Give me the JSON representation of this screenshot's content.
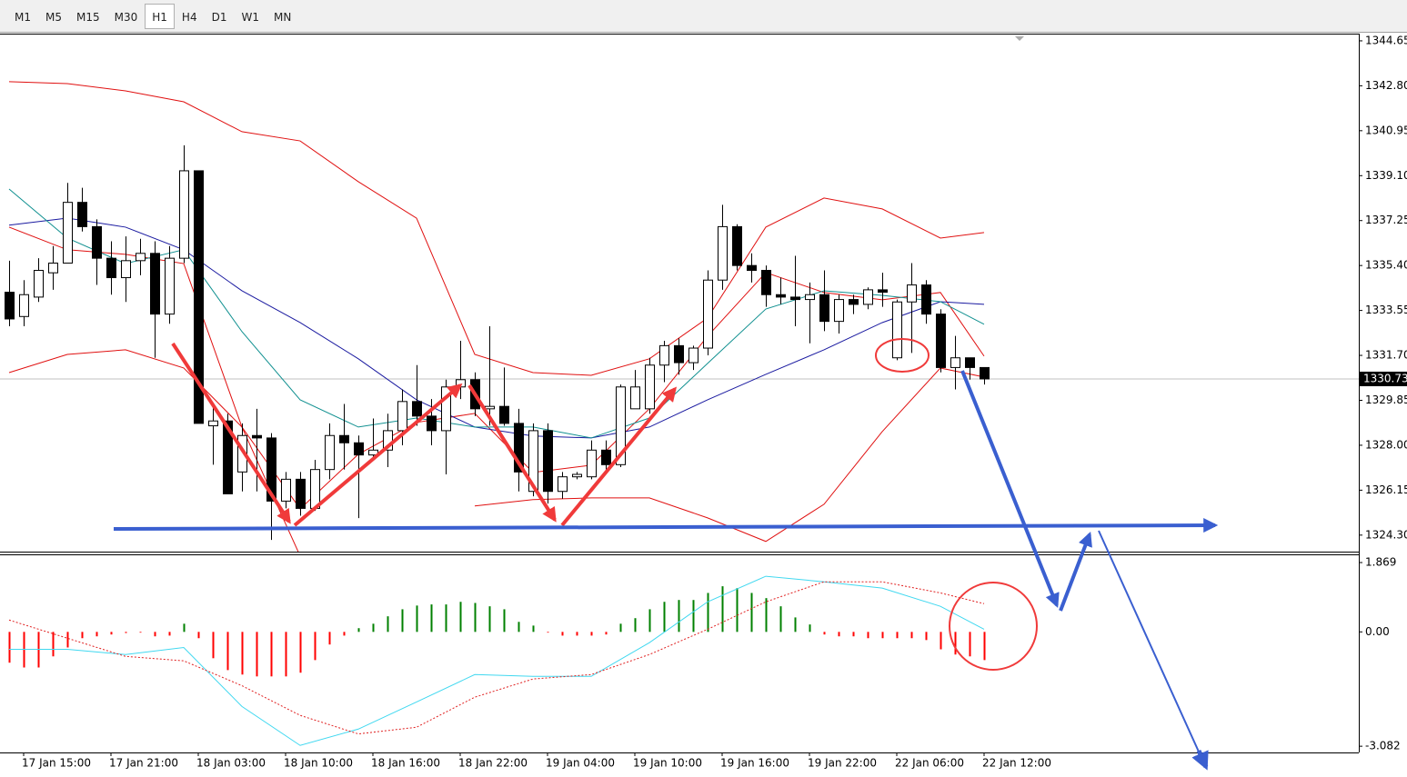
{
  "toolbar": {
    "timeframes": [
      "M1",
      "M5",
      "M15",
      "M30",
      "H1",
      "H4",
      "D1",
      "W1",
      "MN"
    ],
    "active": "H1"
  },
  "chart_data": [
    {
      "type": "candlestick",
      "open": [
        1334.3,
        1333.3,
        1334.1,
        1335.1,
        1335.5,
        1338.0,
        1337.0,
        1335.7,
        1334.9,
        1335.6,
        1335.9,
        1333.4,
        1335.7,
        1339.3,
        1328.8,
        1329.0,
        1326.9,
        1328.4,
        1328.3,
        1325.7,
        1326.6,
        1325.4,
        1327.0,
        1328.4,
        1328.1,
        1327.6,
        1327.8,
        1328.6,
        1329.8,
        1329.2,
        1328.6,
        1330.4,
        1330.7,
        1329.5,
        1329.6,
        1328.9,
        1326.1,
        1328.6,
        1326.1,
        1326.7,
        1326.7,
        1327.8,
        1327.2,
        1329.5,
        1329.5,
        1331.3,
        1332.1,
        1331.4,
        1332.0,
        1334.8,
        1337.0,
        1335.4,
        1335.2,
        1334.2,
        1334.1,
        1334.0,
        1334.2,
        1333.1,
        1334.0,
        1333.8,
        1334.4,
        1331.6,
        1333.9,
        1334.6,
        1333.4,
        1331.2,
        1331.6,
        1331.2
      ],
      "high": [
        1335.6,
        1334.8,
        1335.7,
        1336.2,
        1338.8,
        1338.6,
        1337.3,
        1336.4,
        1336.6,
        1336.5,
        1336.4,
        1336.2,
        1340.35,
        1339.3,
        1329.6,
        1329.3,
        1328.9,
        1329.5,
        1328.5,
        1326.9,
        1326.9,
        1327.4,
        1328.9,
        1329.7,
        1328.4,
        1329.1,
        1329.3,
        1330.3,
        1331.3,
        1329.9,
        1330.7,
        1332.3,
        1331.0,
        1332.9,
        1331.2,
        1329.5,
        1328.9,
        1328.9,
        1326.9,
        1326.9,
        1328.2,
        1328.2,
        1330.5,
        1331.1,
        1331.6,
        1332.3,
        1332.4,
        1332.1,
        1335.2,
        1337.9,
        1337.1,
        1335.9,
        1335.4,
        1334.9,
        1335.8,
        1334.7,
        1335.2,
        1334.2,
        1334.2,
        1334.5,
        1335.1,
        1334.0,
        1335.5,
        1334.8,
        1333.6,
        1332.5,
        1331.6,
        1331.2
      ],
      "low": [
        1332.9,
        1332.9,
        1333.9,
        1334.4,
        1335.5,
        1336.8,
        1334.6,
        1334.2,
        1333.9,
        1335.0,
        1331.6,
        1333.0,
        1335.5,
        1328.9,
        1327.2,
        1326.0,
        1326.1,
        1326.1,
        1324.1,
        1325.4,
        1325.1,
        1325.3,
        1326.6,
        1327.0,
        1325.0,
        1327.4,
        1327.1,
        1328.0,
        1328.8,
        1328.0,
        1326.8,
        1329.9,
        1329.2,
        1328.8,
        1328.8,
        1326.1,
        1325.9,
        1325.6,
        1325.8,
        1326.6,
        1326.6,
        1326.9,
        1327.1,
        1329.5,
        1329.3,
        1330.6,
        1330.9,
        1331.1,
        1331.7,
        1334.4,
        1335.2,
        1334.7,
        1333.7,
        1333.8,
        1332.9,
        1332.2,
        1332.7,
        1332.6,
        1333.4,
        1333.6,
        1333.7,
        1331.5,
        1331.8,
        1333.0,
        1331.0,
        1330.3,
        1330.7,
        1330.5
      ],
      "close": [
        1333.2,
        1334.2,
        1335.2,
        1335.5,
        1338.0,
        1337.0,
        1335.7,
        1334.9,
        1335.6,
        1335.9,
        1333.4,
        1335.7,
        1339.3,
        1328.9,
        1329.0,
        1326.0,
        1328.4,
        1328.3,
        1325.7,
        1326.6,
        1325.4,
        1327.0,
        1328.4,
        1328.1,
        1327.6,
        1327.8,
        1328.6,
        1329.8,
        1329.2,
        1328.6,
        1330.4,
        1330.7,
        1329.5,
        1329.6,
        1328.9,
        1326.9,
        1328.6,
        1326.1,
        1326.7,
        1326.8,
        1327.8,
        1327.2,
        1330.4,
        1330.4,
        1331.3,
        1332.1,
        1331.4,
        1332.0,
        1334.8,
        1337.0,
        1335.4,
        1335.2,
        1334.2,
        1334.1,
        1334.0,
        1334.2,
        1333.1,
        1334.0,
        1333.8,
        1334.4,
        1334.3,
        1333.9,
        1334.6,
        1333.4,
        1331.2,
        1331.6,
        1331.2,
        1330.73
      ],
      "xtick_labels": [
        "17 Jan 15:00",
        "17 Jan 21:00",
        "18 Jan 03:00",
        "18 Jan 10:00",
        "18 Jan 16:00",
        "18 Jan 22:00",
        "19 Jan 04:00",
        "19 Jan 10:00",
        "19 Jan 16:00",
        "19 Jan 22:00",
        "22 Jan 06:00",
        "22 Jan 12:00"
      ],
      "ylim": [
        1323.62,
        1344.91
      ],
      "yticks": [
        1344.65,
        {
          "value": 1342.8,
          "label": "1342.80"
        },
        1340.95,
        {
          "value": 1339.1,
          "label": "1339.10"
        },
        1337.25,
        {
          "value": 1335.4,
          "label": "1335.40"
        },
        1333.55,
        {
          "value": 1331.7,
          "label": "1331.70"
        },
        1329.85,
        {
          "value": 1328,
          "label": "1328.00"
        },
        1326.15,
        {
          "value": 1324.3,
          "label": "1324.30"
        }
      ],
      "current_price": 1330.73,
      "lines_x": [
        0,
        4,
        8,
        12,
        16,
        20,
        24,
        28,
        32,
        36,
        40,
        44,
        48,
        52,
        56,
        60,
        64,
        67
      ],
      "lines": [
        {
          "color": "#e01010",
          "values": [
            1342.97,
            1342.89,
            1342.59,
            1342.14,
            1340.91,
            1340.53,
            1338.85,
            1337.35,
            1331.74,
            1330.99,
            1330.88,
            1331.56,
            1333.24,
            1336.98,
            1338.18,
            1337.73,
            1336.53,
            1336.76
          ]
        },
        {
          "color": "#e01010",
          "values": [
            1330.99,
            1331.74,
            1331.93,
            1331.18,
            1328.75,
            1323.44,
            null,
            null,
            1325.5,
            1325.76,
            1325.83,
            1325.83,
            1325.01,
            1324.04,
            1325.57,
            1328.56,
            1331.18,
            1330.81
          ]
        },
        {
          "color": "#e01010",
          "values": [
            1336.98,
            1336.05,
            1335.86,
            1335.48,
            1328.75,
            1325.38,
            1327.63,
            1328.94,
            1329.31,
            1326.88,
            1327.18,
            1329.5,
            1332.49,
            1335.11,
            1334.29,
            1333.99,
            1334.29,
            1331.67
          ]
        },
        {
          "color": "#1a1aa0",
          "values": [
            1337.06,
            1337.35,
            1336.98,
            1336.05,
            1334.36,
            1333.05,
            1331.56,
            1329.87,
            1328.75,
            1328.38,
            1328.3,
            1328.75,
            1329.87,
            1330.92,
            1331.93,
            1333.05,
            1333.91,
            1333.8
          ]
        },
        {
          "color": "#109090",
          "values": [
            1338.55,
            1336.53,
            1335.48,
            1336.05,
            1332.68,
            1329.87,
            1328.75,
            1329.12,
            1328.75,
            1328.75,
            1328.3,
            1329.12,
            1331.37,
            1333.61,
            1334.36,
            1334.17,
            1333.91,
            1332.98
          ]
        }
      ]
    },
    {
      "type": "macd",
      "values": [
        -0.83,
        -0.96,
        -0.96,
        -0.66,
        -0.42,
        -0.17,
        -0.12,
        -0.07,
        -0.03,
        -0.02,
        -0.12,
        -0.1,
        0.22,
        -0.17,
        -0.71,
        -1.03,
        -1.15,
        -1.2,
        -1.2,
        -1.2,
        -1.1,
        -0.76,
        -0.34,
        -0.1,
        0.1,
        0.22,
        0.42,
        0.61,
        0.71,
        0.74,
        0.74,
        0.81,
        0.78,
        0.69,
        0.61,
        0.27,
        0.17,
        -0.02,
        -0.1,
        -0.1,
        -0.1,
        -0.07,
        0.22,
        0.37,
        0.61,
        0.81,
        0.86,
        0.86,
        1.05,
        1.23,
        1.18,
        1.05,
        0.91,
        0.69,
        0.39,
        0.2,
        -0.07,
        -0.12,
        -0.12,
        -0.17,
        -0.17,
        -0.17,
        -0.17,
        -0.22,
        -0.47,
        -0.61,
        -0.66,
        -0.76
      ],
      "up_color": "#008000",
      "down_color": "#ff0000",
      "ylim": [
        -3.25,
        2.09
      ],
      "yticks": [
        1.869,
        {
          "value": 0,
          "label": "0.00"
        },
        -3.082
      ],
      "lines_x": [
        0,
        4,
        8,
        12,
        16,
        20,
        24,
        28,
        32,
        36,
        40,
        44,
        48,
        52,
        56,
        60,
        64,
        67
      ],
      "lines": [
        {
          "color": "#40d8f0",
          "dashed": false,
          "values": [
            -0.47,
            -0.47,
            -0.61,
            -0.42,
            -2.01,
            -3.06,
            -2.62,
            -1.89,
            -1.15,
            -1.2,
            -1.2,
            -0.29,
            0.81,
            1.5,
            1.35,
            1.18,
            0.69,
            0.07
          ]
        },
        {
          "color": "#e02020",
          "dashed": true,
          "values": [
            0.32,
            -0.17,
            -0.66,
            -0.78,
            -1.45,
            -2.25,
            -2.75,
            -2.57,
            -1.76,
            -1.27,
            -1.15,
            -0.61,
            0.07,
            0.81,
            1.35,
            1.35,
            1.05,
            0.76
          ]
        }
      ]
    }
  ]
}
